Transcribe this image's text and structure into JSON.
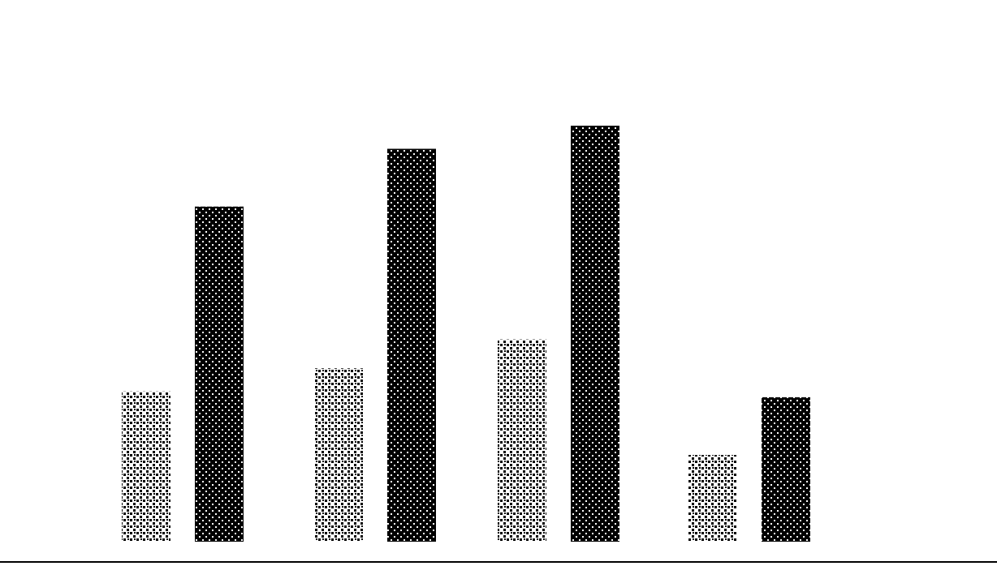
{
  "chart_data": {
    "type": "bar",
    "title": "",
    "xlabel": "",
    "ylabel": "",
    "legend_placement": "top-right",
    "grid": false,
    "ylim": [
      0,
      8
    ],
    "yticks": [
      "",
      "",
      "",
      "",
      "",
      "",
      "",
      ""
    ],
    "categories": [
      "",
      "",
      "",
      ""
    ],
    "series": [
      {
        "values": [
          2.6,
          3.0,
          3.5,
          1.5
        ],
        "labels": [
          "",
          "",
          "",
          ""
        ],
        "color": "#000000",
        "pattern": "sparse"
      },
      {
        "values": [
          5.8,
          6.8,
          7.2,
          2.5
        ],
        "labels": [
          "",
          "",
          "",
          ""
        ],
        "color": "#000000",
        "pattern": "dense"
      }
    ]
  }
}
